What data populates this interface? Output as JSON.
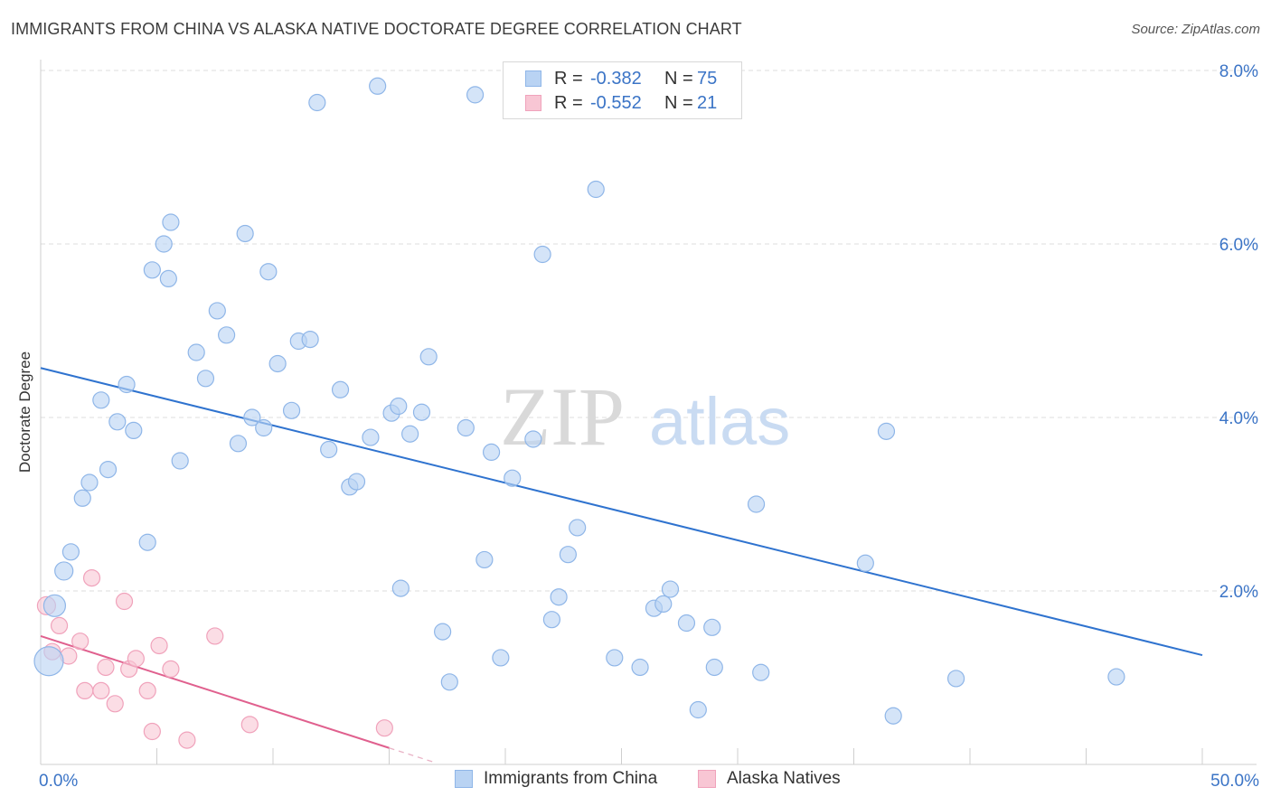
{
  "header": {
    "title": "IMMIGRANTS FROM CHINA VS ALASKA NATIVE DOCTORATE DEGREE CORRELATION CHART",
    "source": "Source: ZipAtlas.com"
  },
  "watermark": {
    "zip": "ZIP",
    "atlas": "atlas"
  },
  "legend": {
    "rows": [
      {
        "r_label": "R =",
        "r_value": "-0.382",
        "n_label": "N =",
        "n_value": "75"
      },
      {
        "r_label": "R =",
        "r_value": "-0.552",
        "n_label": "N =",
        "n_value": "21"
      }
    ]
  },
  "bottom_legend": {
    "china": "Immigrants from China",
    "alaska": "Alaska Natives"
  },
  "colors": {
    "china_fill": "#b9d3f3",
    "china_stroke": "#8fb6e8",
    "china_line": "#2f73cf",
    "alaska_fill": "#f8c6d4",
    "alaska_stroke": "#f0a2bb",
    "alaska_line": "#e0608e",
    "tick_text": "#3b74c6",
    "grid": "#dddddd"
  },
  "chart_data": {
    "type": "scatter",
    "title": "IMMIGRANTS FROM CHINA VS ALASKA NATIVE DOCTORATE DEGREE CORRELATION CHART",
    "xlabel": "",
    "ylabel": "Doctorate Degree",
    "xlim": [
      0,
      50
    ],
    "ylim": [
      0,
      8.0
    ],
    "x_tick_labels": [
      "0.0%",
      "50.0%"
    ],
    "y_ticks": [
      2.0,
      4.0,
      6.0,
      8.0
    ],
    "y_tick_labels": [
      "2.0%",
      "4.0%",
      "6.0%",
      "8.0%"
    ],
    "grid": true,
    "series": [
      {
        "name": "Immigrants from China",
        "points": [
          [
            0.35,
            1.19,
            16
          ],
          [
            0.6,
            1.83,
            12
          ],
          [
            1.0,
            2.23,
            10
          ],
          [
            1.3,
            2.45,
            9
          ],
          [
            1.8,
            3.07,
            9
          ],
          [
            2.1,
            3.25,
            9
          ],
          [
            2.6,
            4.2,
            9
          ],
          [
            2.9,
            3.4,
            9
          ],
          [
            3.3,
            3.95,
            9
          ],
          [
            3.7,
            4.38,
            9
          ],
          [
            4.0,
            3.85,
            9
          ],
          [
            4.6,
            2.56,
            9
          ],
          [
            4.8,
            5.7,
            9
          ],
          [
            5.3,
            6.0,
            9
          ],
          [
            5.6,
            6.25,
            9
          ],
          [
            5.5,
            5.6,
            9
          ],
          [
            6.0,
            3.5,
            9
          ],
          [
            6.7,
            4.75,
            9
          ],
          [
            7.1,
            4.45,
            9
          ],
          [
            7.6,
            5.23,
            9
          ],
          [
            8.0,
            4.95,
            9
          ],
          [
            8.5,
            3.7,
            9
          ],
          [
            8.8,
            6.12,
            9
          ],
          [
            9.1,
            4.0,
            9
          ],
          [
            9.6,
            3.88,
            9
          ],
          [
            9.8,
            5.68,
            9
          ],
          [
            10.2,
            4.62,
            9
          ],
          [
            10.8,
            4.08,
            9
          ],
          [
            11.1,
            4.88,
            9
          ],
          [
            11.6,
            4.9,
            9
          ],
          [
            11.9,
            7.63,
            9
          ],
          [
            12.4,
            3.63,
            9
          ],
          [
            12.9,
            4.32,
            9
          ],
          [
            13.3,
            3.2,
            9
          ],
          [
            13.6,
            3.26,
            9
          ],
          [
            14.2,
            3.77,
            9
          ],
          [
            14.5,
            7.82,
            9
          ],
          [
            15.1,
            4.05,
            9
          ],
          [
            15.4,
            4.13,
            9
          ],
          [
            15.5,
            2.03,
            9
          ],
          [
            15.9,
            3.81,
            9
          ],
          [
            16.4,
            4.06,
            9
          ],
          [
            16.7,
            4.7,
            9
          ],
          [
            17.3,
            1.53,
            9
          ],
          [
            17.6,
            0.95,
            9
          ],
          [
            18.3,
            3.88,
            9
          ],
          [
            18.7,
            7.72,
            9
          ],
          [
            19.1,
            2.36,
            9
          ],
          [
            19.4,
            3.6,
            9
          ],
          [
            19.8,
            1.23,
            9
          ],
          [
            20.3,
            3.3,
            9
          ],
          [
            21.2,
            3.75,
            9
          ],
          [
            21.6,
            5.88,
            9
          ],
          [
            22.0,
            1.67,
            9
          ],
          [
            22.3,
            1.93,
            9
          ],
          [
            22.7,
            2.42,
            9
          ],
          [
            23.1,
            2.73,
            9
          ],
          [
            23.9,
            6.63,
            9
          ],
          [
            24.7,
            1.23,
            9
          ],
          [
            25.8,
            1.12,
            9
          ],
          [
            26.4,
            1.8,
            9
          ],
          [
            26.8,
            1.85,
            9
          ],
          [
            27.1,
            2.02,
            9
          ],
          [
            27.8,
            1.63,
            9
          ],
          [
            28.3,
            0.63,
            9
          ],
          [
            28.9,
            1.58,
            9
          ],
          [
            29.0,
            1.12,
            9
          ],
          [
            29.8,
            7.92,
            9
          ],
          [
            30.8,
            3.0,
            9
          ],
          [
            31.0,
            1.06,
            9
          ],
          [
            35.5,
            2.32,
            9
          ],
          [
            36.4,
            3.84,
            9
          ],
          [
            36.7,
            0.56,
            9
          ],
          [
            39.4,
            0.99,
            9
          ],
          [
            46.3,
            1.01,
            9
          ]
        ]
      },
      {
        "name": "Alaska Natives",
        "points": [
          [
            0.25,
            1.83,
            10
          ],
          [
            0.5,
            1.3,
            9
          ],
          [
            0.8,
            1.6,
            9
          ],
          [
            1.2,
            1.25,
            9
          ],
          [
            1.7,
            1.42,
            9
          ],
          [
            1.9,
            0.85,
            9
          ],
          [
            2.2,
            2.15,
            9
          ],
          [
            2.6,
            0.85,
            9
          ],
          [
            2.8,
            1.12,
            9
          ],
          [
            3.2,
            0.7,
            9
          ],
          [
            3.6,
            1.88,
            9
          ],
          [
            3.8,
            1.1,
            9
          ],
          [
            4.1,
            1.22,
            9
          ],
          [
            4.6,
            0.85,
            9
          ],
          [
            4.8,
            0.38,
            9
          ],
          [
            5.1,
            1.37,
            9
          ],
          [
            5.6,
            1.1,
            9
          ],
          [
            6.3,
            0.28,
            9
          ],
          [
            7.5,
            1.48,
            9
          ],
          [
            9.0,
            0.46,
            9
          ],
          [
            14.8,
            0.42,
            9
          ]
        ]
      }
    ],
    "trend_lines": [
      {
        "series": "Immigrants from China",
        "x": [
          0,
          50
        ],
        "y": [
          4.57,
          1.26
        ],
        "style": "solid"
      },
      {
        "series": "Alaska Natives",
        "x": [
          0,
          15.0
        ],
        "y": [
          1.48,
          0.19
        ],
        "style": "solid"
      },
      {
        "series": "Alaska Natives",
        "x": [
          15.0,
          17.0
        ],
        "y": [
          0.19,
          0.02
        ],
        "style": "dashed"
      }
    ]
  }
}
